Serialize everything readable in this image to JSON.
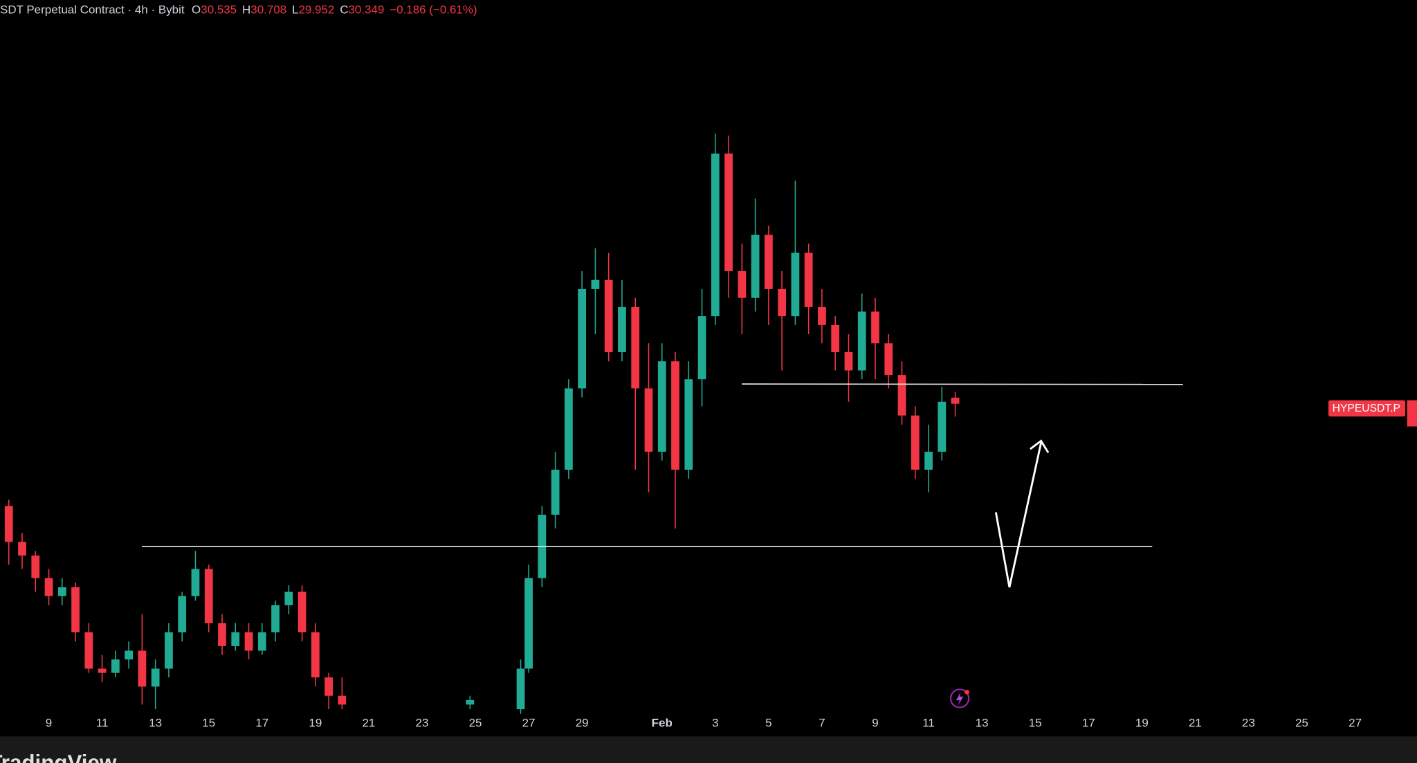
{
  "header": {
    "symbol": "SDT Perpetual Contract · 4h · Bybit",
    "open_label": "O",
    "high_label": "H",
    "low_label": "L",
    "close_label": "C",
    "change": "−0.186 (−0.61%)"
  },
  "chart_data": {
    "type": "candlestick",
    "x": [
      7.5,
      8,
      8.5,
      9,
      9.5,
      10,
      10.5,
      11,
      11.5,
      12,
      12.5,
      13,
      13.5,
      14,
      14.5,
      15,
      15.5,
      16,
      16.5,
      17,
      17.5,
      18,
      18.5,
      19,
      19.5,
      20,
      24.8,
      26.7,
      27,
      27.5,
      28,
      28.5,
      29,
      29.5,
      30,
      30.5,
      31,
      31.5,
      32,
      32.5,
      33,
      33.5,
      34,
      34.5,
      35,
      35.5,
      36,
      36.5,
      37,
      37.5,
      38,
      38.5,
      39,
      39.5,
      40,
      40.5,
      41,
      41.5,
      42,
      42.5,
      43
    ],
    "open": [
      27.22,
      26.12,
      25.7,
      25.01,
      24.46,
      24.73,
      23.35,
      22.24,
      22.11,
      22.52,
      22.79,
      21.69,
      22.24,
      23.35,
      24.46,
      25.29,
      23.63,
      22.93,
      23.35,
      22.79,
      23.35,
      24.18,
      24.59,
      23.35,
      21.97,
      21.41,
      21.14,
      21.0,
      22.24,
      25.01,
      26.95,
      28.33,
      30.82,
      33.86,
      34.14,
      31.93,
      33.31,
      30.82,
      28.88,
      31.65,
      28.33,
      31.1,
      33.03,
      38.01,
      34.41,
      33.59,
      35.52,
      33.86,
      33.03,
      34.97,
      33.31,
      32.76,
      31.93,
      31.37,
      33.17,
      32.2,
      31.23,
      29.99,
      28.33,
      28.88,
      30.535
    ],
    "high": [
      27.41,
      26.39,
      25.84,
      25.29,
      25.01,
      24.87,
      23.63,
      22.66,
      22.79,
      23.07,
      23.9,
      22.52,
      23.63,
      24.59,
      25.84,
      25.42,
      23.9,
      23.63,
      23.63,
      23.63,
      24.32,
      24.79,
      24.79,
      23.63,
      22.11,
      21.97,
      21.41,
      22.52,
      25.42,
      27.22,
      28.88,
      31.1,
      34.41,
      35.11,
      34.97,
      34.14,
      33.59,
      32.2,
      32.2,
      31.93,
      31.65,
      33.86,
      38.62,
      38.56,
      35.25,
      36.63,
      35.8,
      34.41,
      37.18,
      35.25,
      33.86,
      33.03,
      32.48,
      33.72,
      33.59,
      32.48,
      31.65,
      30.27,
      29.71,
      30.87,
      30.708
    ],
    "low": [
      25.42,
      25.29,
      24.59,
      24.18,
      24.18,
      23.07,
      22.11,
      21.83,
      21.97,
      22.24,
      21.14,
      21.0,
      21.97,
      23.07,
      24.32,
      23.35,
      22.66,
      22.79,
      22.52,
      22.66,
      23.07,
      23.9,
      23.07,
      21.69,
      21.0,
      21.0,
      21.0,
      20.86,
      22.11,
      24.73,
      26.53,
      28.05,
      30.54,
      32.48,
      31.65,
      31.65,
      28.33,
      27.64,
      28.61,
      26.53,
      28.05,
      30.27,
      32.76,
      33.59,
      32.48,
      33.17,
      32.76,
      31.37,
      32.76,
      32.48,
      32.2,
      31.37,
      30.41,
      31.1,
      31.1,
      30.82,
      29.71,
      28.05,
      27.64,
      28.61,
      29.952
    ],
    "close": [
      26.12,
      25.7,
      25.01,
      24.46,
      24.73,
      23.35,
      22.24,
      22.11,
      22.52,
      22.79,
      21.69,
      22.24,
      23.35,
      24.46,
      25.29,
      23.63,
      22.93,
      23.35,
      22.79,
      23.35,
      24.18,
      24.59,
      23.35,
      21.97,
      21.41,
      21.14,
      21.28,
      22.24,
      25.01,
      26.95,
      28.33,
      30.82,
      33.86,
      34.14,
      31.93,
      33.31,
      30.82,
      28.88,
      31.65,
      28.33,
      31.1,
      33.03,
      38.01,
      34.41,
      33.59,
      35.52,
      33.86,
      33.03,
      34.97,
      33.31,
      32.76,
      31.93,
      31.37,
      33.17,
      32.2,
      31.23,
      29.99,
      28.33,
      28.88,
      30.41,
      30.349
    ],
    "up_color": "#22ab94",
    "down_color": "#f23645",
    "xlim": [
      7.17,
      60.32
    ],
    "ylim": [
      20,
      40
    ],
    "xticks": [
      9,
      11,
      13,
      15,
      17,
      19,
      21,
      23,
      25,
      27,
      29,
      {
        "value": 32,
        "label": "Feb"
      },
      {
        "value": 34,
        "label": "3"
      },
      {
        "value": 36,
        "label": "5"
      },
      {
        "value": 38,
        "label": "7"
      },
      {
        "value": 40,
        "label": "9"
      },
      {
        "value": 42,
        "label": "11"
      },
      {
        "value": 44,
        "label": "13"
      },
      {
        "value": 46,
        "label": "15"
      },
      {
        "value": 48,
        "label": "17"
      },
      {
        "value": 50,
        "label": "19"
      },
      {
        "value": 52,
        "label": "21"
      },
      {
        "value": 54,
        "label": "23"
      },
      {
        "value": 56,
        "label": "25"
      },
      {
        "value": 58,
        "label": "27"
      }
    ],
    "symbol_label": "HYPEUSDT.P"
  },
  "footer": {
    "brand": "TradingView"
  }
}
